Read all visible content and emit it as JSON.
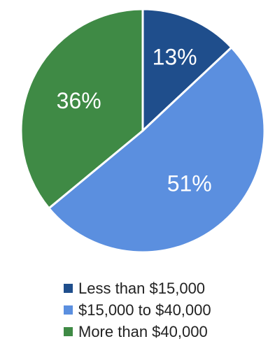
{
  "chart_data": {
    "type": "pie",
    "title": "",
    "categories": [
      "Less than $15,000",
      "$15,000 to $40,000",
      "More than $40,000"
    ],
    "values": [
      13,
      51,
      36
    ],
    "data_labels": [
      "13%",
      "51%",
      "36%"
    ],
    "colors": [
      "#1f4e8c",
      "#5b8fdf",
      "#3f8a45"
    ],
    "legend_position": "bottom"
  }
}
